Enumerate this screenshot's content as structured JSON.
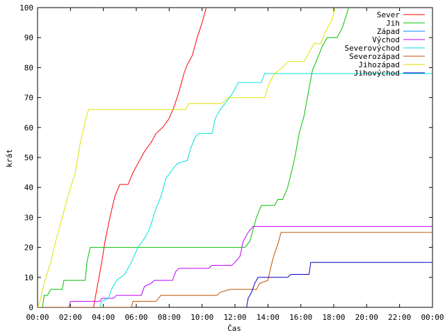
{
  "chart_data": {
    "type": "line",
    "title": "",
    "xlabel": "Čas",
    "ylabel": "krát",
    "xlim": [
      0,
      24
    ],
    "ylim": [
      0,
      100
    ],
    "x_ticks": [
      {
        "value": 0,
        "label": "00:00"
      },
      {
        "value": 2,
        "label": "02:00"
      },
      {
        "value": 4,
        "label": "04:00"
      },
      {
        "value": 6,
        "label": "06:00"
      },
      {
        "value": 8,
        "label": "08:00"
      },
      {
        "value": 10,
        "label": "10:00"
      },
      {
        "value": 12,
        "label": "12:00"
      },
      {
        "value": 14,
        "label": "14:00"
      },
      {
        "value": 16,
        "label": "16:00"
      },
      {
        "value": 18,
        "label": "18:00"
      },
      {
        "value": 20,
        "label": "20:00"
      },
      {
        "value": 22,
        "label": "22:00"
      },
      {
        "value": 24,
        "label": "00:00"
      }
    ],
    "y_ticks": [
      0,
      10,
      20,
      30,
      40,
      50,
      60,
      70,
      80,
      90,
      100
    ],
    "grid": false,
    "legend_position": "top-right",
    "series": [
      {
        "name": "Sever",
        "color": "#ff0000",
        "points": [
          [
            0,
            0
          ],
          [
            3.4,
            0
          ],
          [
            3.6,
            6
          ],
          [
            3.9,
            15
          ],
          [
            4.1,
            22
          ],
          [
            4.4,
            30
          ],
          [
            4.7,
            37
          ],
          [
            5.0,
            41
          ],
          [
            5.5,
            41
          ],
          [
            5.8,
            45
          ],
          [
            6.1,
            48
          ],
          [
            6.5,
            52
          ],
          [
            6.9,
            55
          ],
          [
            7.2,
            58
          ],
          [
            7.6,
            60
          ],
          [
            8.0,
            63
          ],
          [
            8.3,
            67
          ],
          [
            8.6,
            72
          ],
          [
            8.9,
            78
          ],
          [
            9.1,
            81
          ],
          [
            9.4,
            84
          ],
          [
            9.7,
            90
          ],
          [
            10.0,
            95
          ],
          [
            10.25,
            100
          ]
        ]
      },
      {
        "name": "Jih",
        "color": "#00c000",
        "points": [
          [
            0,
            0
          ],
          [
            0.3,
            0
          ],
          [
            0.4,
            4
          ],
          [
            0.6,
            4
          ],
          [
            0.8,
            6
          ],
          [
            1.5,
            6
          ],
          [
            1.6,
            9
          ],
          [
            2.9,
            9
          ],
          [
            3.0,
            15
          ],
          [
            3.2,
            20
          ],
          [
            12.6,
            20
          ],
          [
            12.9,
            22
          ],
          [
            13.3,
            30
          ],
          [
            13.6,
            34
          ],
          [
            14.4,
            34
          ],
          [
            14.6,
            36
          ],
          [
            14.9,
            36
          ],
          [
            15.2,
            40
          ],
          [
            15.6,
            49
          ],
          [
            15.9,
            58
          ],
          [
            16.2,
            64
          ],
          [
            16.4,
            70
          ],
          [
            16.7,
            79
          ],
          [
            17.0,
            83
          ],
          [
            17.3,
            87
          ],
          [
            17.6,
            90
          ],
          [
            18.2,
            90
          ],
          [
            18.5,
            93
          ],
          [
            18.8,
            98
          ],
          [
            18.9,
            100
          ]
        ]
      },
      {
        "name": "Západ",
        "color": "#0080ff",
        "points": []
      },
      {
        "name": "Východ",
        "color": "#c000ff",
        "points": [
          [
            1.9,
            0
          ],
          [
            2.0,
            2
          ],
          [
            3.8,
            2
          ],
          [
            3.9,
            3
          ],
          [
            4.6,
            3
          ],
          [
            4.8,
            4
          ],
          [
            6.3,
            4
          ],
          [
            6.5,
            7
          ],
          [
            6.9,
            8
          ],
          [
            7.1,
            9
          ],
          [
            8.2,
            9
          ],
          [
            8.4,
            12
          ],
          [
            8.6,
            13
          ],
          [
            10.4,
            13
          ],
          [
            10.6,
            14
          ],
          [
            11.8,
            14
          ],
          [
            12.0,
            15
          ],
          [
            12.3,
            17
          ],
          [
            12.5,
            22
          ],
          [
            12.8,
            25
          ],
          [
            13.1,
            27
          ],
          [
            24,
            27
          ]
        ]
      },
      {
        "name": "Severovýchod",
        "color": "#00e0e0",
        "points": [
          [
            0,
            0
          ],
          [
            3.8,
            0
          ],
          [
            3.9,
            2
          ],
          [
            4.3,
            3
          ],
          [
            4.5,
            6
          ],
          [
            4.8,
            9
          ],
          [
            5.3,
            11
          ],
          [
            5.7,
            15
          ],
          [
            6.1,
            20
          ],
          [
            6.5,
            23
          ],
          [
            6.8,
            26
          ],
          [
            7.2,
            33
          ],
          [
            7.5,
            37
          ],
          [
            7.8,
            43
          ],
          [
            8.2,
            46
          ],
          [
            8.5,
            48
          ],
          [
            9.1,
            49
          ],
          [
            9.3,
            53
          ],
          [
            9.6,
            57
          ],
          [
            9.8,
            58
          ],
          [
            10.6,
            58
          ],
          [
            10.8,
            63
          ],
          [
            11.1,
            66
          ],
          [
            11.4,
            68
          ],
          [
            11.8,
            71
          ],
          [
            12.2,
            75
          ],
          [
            13.6,
            75
          ],
          [
            13.8,
            78
          ],
          [
            24,
            78
          ]
        ]
      },
      {
        "name": "Severozápad",
        "color": "#c05000",
        "points": [
          [
            0,
            0
          ],
          [
            5.7,
            0
          ],
          [
            5.8,
            2
          ],
          [
            7.2,
            2
          ],
          [
            7.5,
            4
          ],
          [
            10.9,
            4
          ],
          [
            11.1,
            5
          ],
          [
            11.7,
            6
          ],
          [
            13.3,
            6
          ],
          [
            13.5,
            8
          ],
          [
            14.0,
            9
          ],
          [
            14.2,
            14
          ],
          [
            14.4,
            18
          ],
          [
            14.6,
            21
          ],
          [
            14.8,
            25
          ],
          [
            24,
            25
          ]
        ]
      },
      {
        "name": "Jihozápad",
        "color": "#e0e000",
        "points": [
          [
            0,
            0
          ],
          [
            0.15,
            2
          ],
          [
            0.4,
            8
          ],
          [
            0.8,
            15
          ],
          [
            1.1,
            22
          ],
          [
            1.5,
            30
          ],
          [
            1.9,
            38
          ],
          [
            2.3,
            45
          ],
          [
            2.6,
            55
          ],
          [
            2.9,
            62
          ],
          [
            3.1,
            66
          ],
          [
            9.0,
            66
          ],
          [
            9.2,
            68
          ],
          [
            11.2,
            68
          ],
          [
            11.6,
            70
          ],
          [
            13.8,
            70
          ],
          [
            14.1,
            75
          ],
          [
            14.4,
            78
          ],
          [
            14.9,
            80
          ],
          [
            15.2,
            82
          ],
          [
            16.2,
            82
          ],
          [
            16.5,
            85
          ],
          [
            16.8,
            88
          ],
          [
            17.2,
            88
          ],
          [
            17.5,
            92
          ],
          [
            17.9,
            96
          ],
          [
            18.1,
            100
          ]
        ]
      },
      {
        "name": "Jihovýchod",
        "color": "#0000c0",
        "points": [
          [
            12.7,
            0
          ],
          [
            12.8,
            3
          ],
          [
            13.0,
            5
          ],
          [
            13.2,
            8
          ],
          [
            13.4,
            10
          ],
          [
            15.2,
            10
          ],
          [
            15.4,
            11
          ],
          [
            16.5,
            11
          ],
          [
            16.6,
            15
          ],
          [
            24,
            15
          ]
        ]
      }
    ]
  }
}
